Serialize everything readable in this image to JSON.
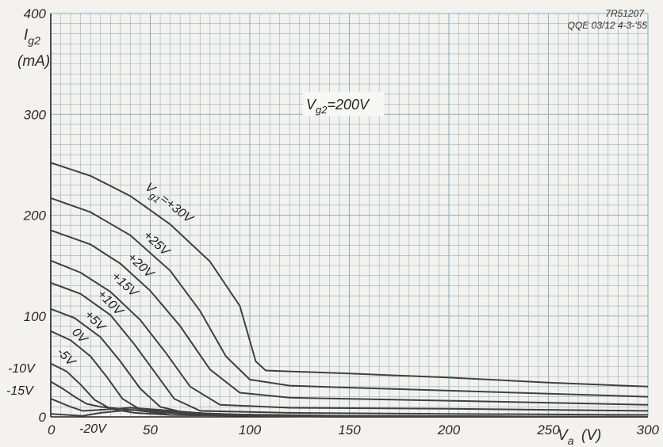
{
  "chart_data": {
    "type": "line",
    "title": "",
    "reference": {
      "line1": "7R51207",
      "line2": "QQE 03/12 4-3-'55"
    },
    "annotation": {
      "main": "V",
      "sub": "g2",
      "rest": "=200V"
    },
    "xlabel": {
      "main": "V",
      "sub": "a",
      "unit": "(V)"
    },
    "ylabel": {
      "main": "I",
      "sub": "g2",
      "unit": "(mA)"
    },
    "xlim": [
      0,
      300
    ],
    "ylim": [
      0,
      400
    ],
    "x_ticks": [
      "0",
      "50",
      "100",
      "150",
      "200",
      "250",
      "300"
    ],
    "y_ticks": [
      "0",
      "100",
      "200",
      "300",
      "400"
    ],
    "grid": true,
    "colors": {
      "background": "#f3f2ee",
      "grid": "#8fb0c4",
      "axis": "#222222",
      "curve": "#404040"
    },
    "series": [
      {
        "name": "V",
        "sub": "g1",
        "label": "=+30V",
        "points": [
          [
            0,
            252
          ],
          [
            20,
            239
          ],
          [
            40,
            219
          ],
          [
            60,
            191
          ],
          [
            80,
            154
          ],
          [
            95,
            110
          ],
          [
            103,
            55
          ],
          [
            108,
            46
          ],
          [
            150,
            43
          ],
          [
            200,
            39
          ],
          [
            250,
            34
          ],
          [
            300,
            30
          ]
        ]
      },
      {
        "name": "",
        "label": "+25V",
        "points": [
          [
            0,
            217
          ],
          [
            20,
            203
          ],
          [
            40,
            180
          ],
          [
            60,
            145
          ],
          [
            75,
            105
          ],
          [
            88,
            60
          ],
          [
            100,
            37
          ],
          [
            120,
            31
          ],
          [
            150,
            29
          ],
          [
            200,
            26
          ],
          [
            250,
            23
          ],
          [
            300,
            20
          ]
        ]
      },
      {
        "name": "",
        "label": "+20V",
        "points": [
          [
            0,
            185
          ],
          [
            20,
            171
          ],
          [
            35,
            152
          ],
          [
            50,
            125
          ],
          [
            65,
            90
          ],
          [
            80,
            47
          ],
          [
            95,
            24
          ],
          [
            120,
            19
          ],
          [
            200,
            16
          ],
          [
            300,
            12
          ]
        ]
      },
      {
        "name": "",
        "label": "+15V",
        "points": [
          [
            0,
            155
          ],
          [
            15,
            143
          ],
          [
            30,
            124
          ],
          [
            45,
            96
          ],
          [
            58,
            63
          ],
          [
            70,
            30
          ],
          [
            85,
            12
          ],
          [
            120,
            9
          ],
          [
            200,
            8
          ],
          [
            300,
            6
          ]
        ]
      },
      {
        "name": "",
        "label": "+10V",
        "points": [
          [
            0,
            133
          ],
          [
            15,
            122
          ],
          [
            30,
            101
          ],
          [
            42,
            72
          ],
          [
            52,
            45
          ],
          [
            62,
            18
          ],
          [
            75,
            6
          ],
          [
            120,
            4
          ],
          [
            200,
            3
          ],
          [
            300,
            2
          ]
        ]
      },
      {
        "name": "",
        "label": "+5V",
        "points": [
          [
            0,
            107
          ],
          [
            12,
            98
          ],
          [
            25,
            79
          ],
          [
            35,
            55
          ],
          [
            45,
            28
          ],
          [
            55,
            10
          ],
          [
            70,
            3
          ],
          [
            150,
            1
          ],
          [
            300,
            0
          ]
        ]
      },
      {
        "name": "",
        "label": "0V",
        "points": [
          [
            0,
            85
          ],
          [
            10,
            76
          ],
          [
            20,
            60
          ],
          [
            28,
            40
          ],
          [
            36,
            18
          ],
          [
            46,
            6
          ],
          [
            60,
            2
          ],
          [
            150,
            0
          ],
          [
            300,
            0
          ]
        ]
      },
      {
        "name": "",
        "label": "-5V",
        "points": [
          [
            0,
            53
          ],
          [
            8,
            45
          ],
          [
            15,
            32
          ],
          [
            22,
            17
          ],
          [
            30,
            8
          ],
          [
            42,
            4
          ],
          [
            60,
            2
          ],
          [
            150,
            0
          ],
          [
            300,
            0
          ]
        ]
      },
      {
        "name": "",
        "label": "-10V",
        "points": [
          [
            0,
            35
          ],
          [
            6,
            28
          ],
          [
            12,
            20
          ],
          [
            18,
            13
          ],
          [
            25,
            10
          ],
          [
            35,
            8
          ],
          [
            50,
            5
          ],
          [
            80,
            2
          ],
          [
            150,
            0
          ],
          [
            300,
            0
          ]
        ]
      },
      {
        "name": "",
        "label": "-15V",
        "points": [
          [
            0,
            18
          ],
          [
            5,
            14
          ],
          [
            10,
            10
          ],
          [
            16,
            6
          ],
          [
            25,
            7
          ],
          [
            40,
            9
          ],
          [
            55,
            7
          ],
          [
            80,
            3
          ],
          [
            150,
            0
          ],
          [
            300,
            0
          ]
        ]
      },
      {
        "name": "",
        "label": "-20V",
        "points": [
          [
            0,
            3
          ],
          [
            8,
            2
          ],
          [
            16,
            1
          ],
          [
            25,
            4
          ],
          [
            40,
            7
          ],
          [
            55,
            6
          ],
          [
            70,
            4
          ],
          [
            100,
            2
          ],
          [
            150,
            1
          ],
          [
            300,
            0
          ]
        ]
      }
    ]
  }
}
